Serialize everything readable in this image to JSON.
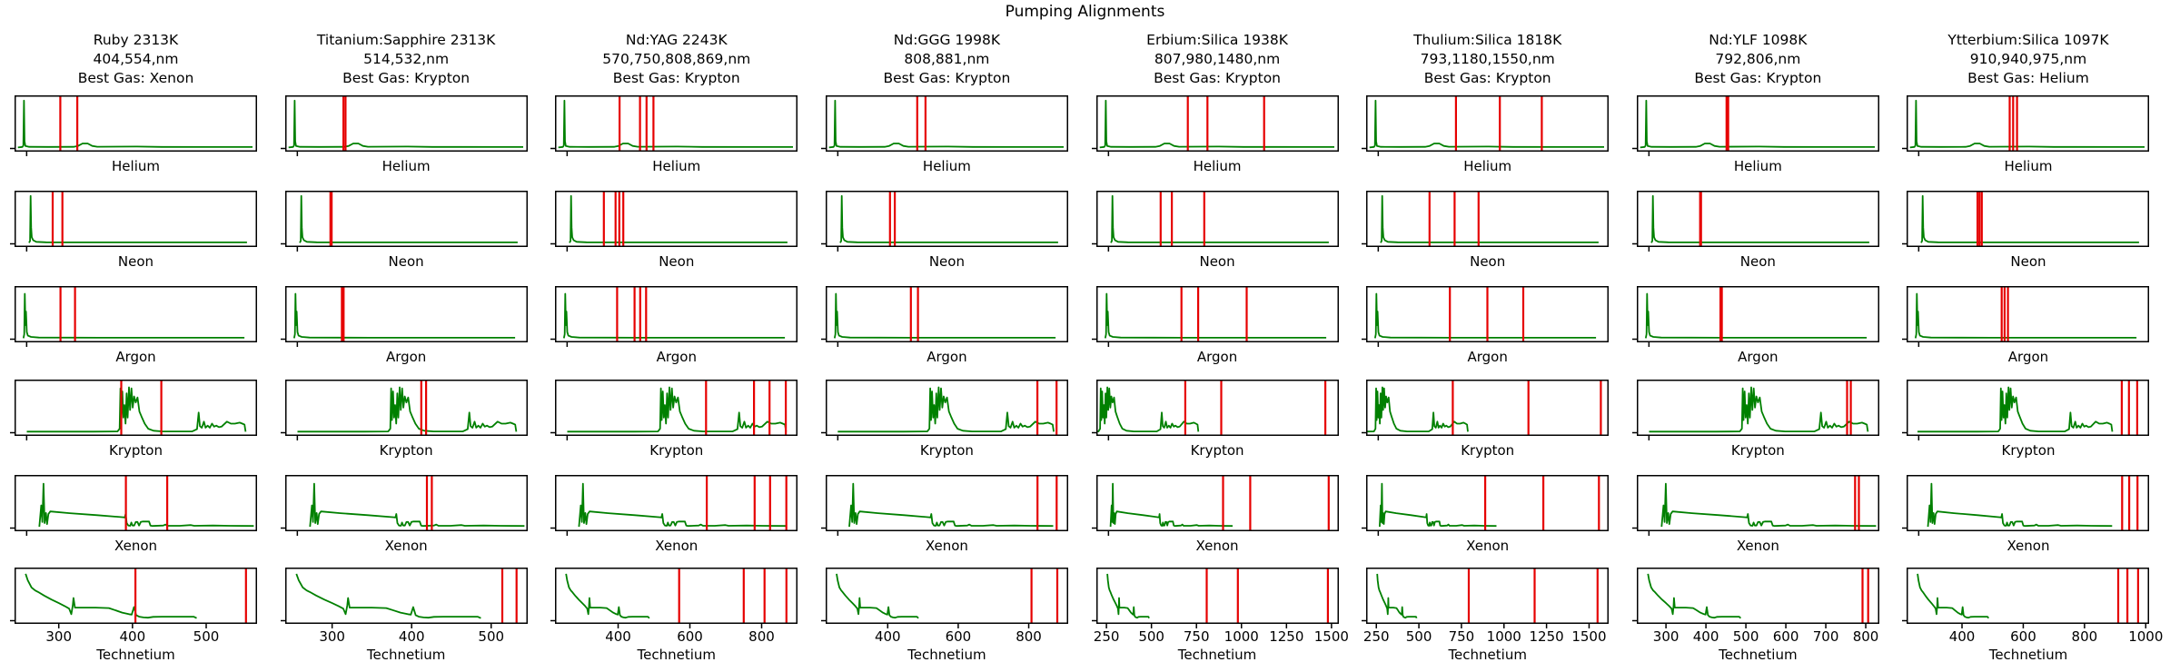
{
  "title": "Pumping Alignments",
  "colors": {
    "trace_green": "#008000",
    "pump_line_red": "#e60000",
    "frame_black": "#000000",
    "background": "#ffffff"
  },
  "chart_data": {
    "type": "line",
    "title": "Pumping Alignments",
    "layout": "small multiples, 6 gas rows x 8 crystal columns, frames on, no grid",
    "x_unit": "nm",
    "legend": "none",
    "columns": [
      {
        "crystal": "Ruby",
        "header_lines": [
          "Ruby 2313K",
          "404,554,nm",
          "Best Gas: Xenon"
        ],
        "temperature": "2313K",
        "pump_wavelengths_nm": [
          404,
          554
        ],
        "best_gas": "Xenon",
        "bottom_ticks": [
          300,
          400,
          500
        ]
      },
      {
        "crystal": "Titanium:Sapphire",
        "header_lines": [
          "Titanium:Sapphire 2313K",
          "514,532,nm",
          "Best Gas: Krypton"
        ],
        "temperature": "2313K",
        "pump_wavelengths_nm": [
          514,
          532
        ],
        "best_gas": "Krypton",
        "bottom_ticks": [
          300,
          400,
          500
        ]
      },
      {
        "crystal": "Nd:YAG",
        "header_lines": [
          "Nd:YAG 2243K",
          "570,750,808,869,nm",
          "Best Gas: Krypton"
        ],
        "temperature": "2243K",
        "pump_wavelengths_nm": [
          570,
          750,
          808,
          869
        ],
        "best_gas": "Krypton",
        "bottom_ticks": [
          400,
          600,
          800
        ]
      },
      {
        "crystal": "Nd:GGG",
        "header_lines": [
          "Nd:GGG 1998K",
          "808,881,nm",
          "Best Gas: Krypton"
        ],
        "temperature": "1998K",
        "pump_wavelengths_nm": [
          808,
          881
        ],
        "best_gas": "Krypton",
        "bottom_ticks": [
          400,
          600,
          800
        ]
      },
      {
        "crystal": "Erbium:Silica",
        "header_lines": [
          "Erbium:Silica 1938K",
          "807,980,1480,nm",
          "Best Gas: Krypton"
        ],
        "temperature": "1938K",
        "pump_wavelengths_nm": [
          807,
          980,
          1480
        ],
        "best_gas": "Krypton",
        "bottom_ticks": [
          250,
          500,
          750,
          1000,
          1250,
          1500
        ]
      },
      {
        "crystal": "Thulium:Silica",
        "header_lines": [
          "Thulium:Silica 1818K",
          "793,1180,1550,nm",
          "Best Gas: Krypton"
        ],
        "temperature": "1818K",
        "pump_wavelengths_nm": [
          793,
          1180,
          1550
        ],
        "best_gas": "Krypton",
        "bottom_ticks": [
          250,
          500,
          750,
          1000,
          1250,
          1500
        ]
      },
      {
        "crystal": "Nd:YLF",
        "header_lines": [
          "Nd:YLF 1098K",
          "792,806,nm",
          "Best Gas: Krypton"
        ],
        "temperature": "1098K",
        "pump_wavelengths_nm": [
          792,
          806
        ],
        "best_gas": "Krypton",
        "bottom_ticks": [
          300,
          400,
          500,
          600,
          700,
          800
        ]
      },
      {
        "crystal": "Ytterbium:Silica",
        "header_lines": [
          "Ytterbium:Silica 1097K",
          "910,940,975,nm",
          "Best Gas: Helium"
        ],
        "temperature": "1097K",
        "pump_wavelengths_nm": [
          910,
          940,
          975
        ],
        "best_gas": "Helium",
        "bottom_ticks": [
          400,
          600,
          800,
          1000
        ]
      }
    ],
    "rows": [
      {
        "gas": "Helium",
        "ticks_labeled": false,
        "xlim_by_column": [
          [
            0,
            2140
          ],
          [
            0,
            2140
          ],
          [
            0,
            2140
          ],
          [
            0,
            2140
          ],
          [
            0,
            2140
          ],
          [
            0,
            2140
          ],
          [
            0,
            2140
          ],
          [
            0,
            2140
          ]
        ]
      },
      {
        "gas": "Neon",
        "ticks_labeled": false,
        "xlim_by_column": [
          [
            -184,
            3555
          ],
          [
            -184,
            3555
          ],
          [
            -184,
            3555
          ],
          [
            -184,
            3555
          ],
          [
            -184,
            3555
          ],
          [
            -184,
            3555
          ],
          [
            -184,
            3555
          ],
          [
            -184,
            3555
          ]
        ]
      },
      {
        "gas": "Argon",
        "ticks_labeled": false,
        "xlim_by_column": [
          [
            -70,
            2430
          ],
          [
            -70,
            2430
          ],
          [
            -70,
            2430
          ],
          [
            -70,
            2430
          ],
          [
            -70,
            2430
          ],
          [
            -70,
            2430
          ],
          [
            -70,
            2430
          ],
          [
            -70,
            2430
          ]
        ]
      },
      {
        "gas": "Krypton",
        "ticks_labeled": false,
        "xlim_by_column": [
          [
            4,
            913
          ],
          [
            4,
            913
          ],
          [
            4,
            913
          ],
          [
            4,
            925
          ],
          [
            380,
            1545
          ],
          [
            350,
            1590
          ],
          [
            4,
            913
          ],
          [
            4,
            1025
          ]
        ]
      },
      {
        "gas": "Xenon",
        "ticks_labeled": false,
        "xlim_by_column": [
          [
            0,
            880
          ],
          [
            0,
            880
          ],
          [
            0,
            911
          ],
          [
            0,
            925
          ],
          [
            0,
            1545
          ],
          [
            0,
            1615
          ],
          [
            0,
            880
          ],
          [
            0,
            1024
          ]
        ]
      },
      {
        "gas": "Technetium",
        "ticks_labeled": true,
        "xlim_by_column": [
          [
            240,
            569
          ],
          [
            241,
            546
          ],
          [
            224,
            900
          ],
          [
            224,
            912
          ],
          [
            194,
            1541
          ],
          [
            190,
            1615
          ],
          [
            227,
            834
          ],
          [
            219,
            1011
          ]
        ]
      }
    ],
    "spectra_nm": {
      "Helium": [
        [
          30,
          0.02
        ],
        [
          70,
          0.03
        ],
        [
          78,
          0.06
        ],
        [
          83,
          0.95
        ],
        [
          88,
          0.14
        ],
        [
          95,
          0.05
        ],
        [
          130,
          0.032
        ],
        [
          300,
          0.03
        ],
        [
          520,
          0.032
        ],
        [
          560,
          0.05
        ],
        [
          600,
          0.1
        ],
        [
          645,
          0.1
        ],
        [
          685,
          0.05
        ],
        [
          730,
          0.034
        ],
        [
          1080,
          0.038
        ],
        [
          1300,
          0.03
        ],
        [
          2100,
          0.028
        ]
      ],
      "Neon": [
        [
          40,
          0.02
        ],
        [
          56,
          0.06
        ],
        [
          64,
          0.95
        ],
        [
          72,
          0.32
        ],
        [
          82,
          0.13
        ],
        [
          105,
          0.07
        ],
        [
          150,
          0.04
        ],
        [
          300,
          0.03
        ],
        [
          1200,
          0.028
        ],
        [
          3400,
          0.028
        ]
      ],
      "Argon": [
        [
          22,
          0.02
        ],
        [
          30,
          0.1
        ],
        [
          36,
          0.9
        ],
        [
          42,
          0.28
        ],
        [
          48,
          0.55
        ],
        [
          56,
          0.14
        ],
        [
          68,
          0.07
        ],
        [
          100,
          0.045
        ],
        [
          180,
          0.032
        ],
        [
          800,
          0.028
        ],
        [
          2300,
          0.028
        ]
      ],
      "Krypton": [
        [
          50,
          0.022
        ],
        [
          300,
          0.022
        ],
        [
          390,
          0.025
        ],
        [
          398,
          0.08
        ],
        [
          401,
          0.88
        ],
        [
          404,
          0.25
        ],
        [
          408,
          0.82
        ],
        [
          412,
          0.3
        ],
        [
          416,
          0.55
        ],
        [
          420,
          0.18
        ],
        [
          424,
          0.78
        ],
        [
          428,
          0.3
        ],
        [
          433,
          0.9
        ],
        [
          437,
          0.45
        ],
        [
          442,
          0.88
        ],
        [
          447,
          0.5
        ],
        [
          452,
          0.72
        ],
        [
          458,
          0.6
        ],
        [
          465,
          0.7
        ],
        [
          472,
          0.42
        ],
        [
          480,
          0.32
        ],
        [
          492,
          0.18
        ],
        [
          505,
          0.08
        ],
        [
          525,
          0.04
        ],
        [
          560,
          0.026
        ],
        [
          670,
          0.026
        ],
        [
          688,
          0.07
        ],
        [
          694,
          0.4
        ],
        [
          699,
          0.13
        ],
        [
          706,
          0.1
        ],
        [
          714,
          0.22
        ],
        [
          720,
          0.1
        ],
        [
          728,
          0.14
        ],
        [
          736,
          0.1
        ],
        [
          744,
          0.18
        ],
        [
          752,
          0.12
        ],
        [
          760,
          0.14
        ],
        [
          770,
          0.11
        ],
        [
          780,
          0.12
        ],
        [
          800,
          0.22
        ],
        [
          815,
          0.18
        ],
        [
          830,
          0.18
        ],
        [
          848,
          0.2
        ],
        [
          858,
          0.18
        ],
        [
          866,
          0.16
        ],
        [
          870,
          0.02
        ]
      ],
      "Xenon": [
        [
          90,
          0.025
        ],
        [
          97,
          0.45
        ],
        [
          101,
          0.12
        ],
        [
          105,
          0.88
        ],
        [
          109,
          0.1
        ],
        [
          114,
          0.3
        ],
        [
          118,
          0.08
        ],
        [
          123,
          0.28
        ],
        [
          130,
          0.33
        ],
        [
          200,
          0.295
        ],
        [
          300,
          0.255
        ],
        [
          395,
          0.215
        ],
        [
          400,
          0.21
        ],
        [
          403,
          0.28
        ],
        [
          407,
          0.1
        ],
        [
          413,
          0.05
        ],
        [
          420,
          0.045
        ],
        [
          424,
          0.11
        ],
        [
          428,
          0.05
        ],
        [
          434,
          0.05
        ],
        [
          440,
          0.12
        ],
        [
          446,
          0.12
        ],
        [
          452,
          0.05
        ],
        [
          458,
          0.12
        ],
        [
          466,
          0.13
        ],
        [
          488,
          0.13
        ],
        [
          493,
          0.05
        ],
        [
          500,
          0.042
        ],
        [
          540,
          0.05
        ],
        [
          548,
          0.07
        ],
        [
          556,
          0.045
        ],
        [
          600,
          0.045
        ],
        [
          640,
          0.06
        ],
        [
          652,
          0.045
        ],
        [
          720,
          0.05
        ],
        [
          780,
          0.045
        ],
        [
          868,
          0.042
        ]
      ],
      "Technetium": [
        [
          255,
          0.93
        ],
        [
          258,
          0.8
        ],
        [
          263,
          0.66
        ],
        [
          268,
          0.6
        ],
        [
          272,
          0.57
        ],
        [
          280,
          0.5
        ],
        [
          290,
          0.42
        ],
        [
          300,
          0.35
        ],
        [
          308,
          0.29
        ],
        [
          314,
          0.24
        ],
        [
          317,
          0.13
        ],
        [
          319,
          0.3
        ],
        [
          320,
          0.45
        ],
        [
          322,
          0.26
        ],
        [
          330,
          0.26
        ],
        [
          350,
          0.26
        ],
        [
          368,
          0.25
        ],
        [
          376,
          0.21
        ],
        [
          386,
          0.16
        ],
        [
          395,
          0.13
        ],
        [
          399,
          0.12
        ],
        [
          402,
          0.27
        ],
        [
          405,
          0.11
        ],
        [
          409,
          0.08
        ],
        [
          415,
          0.065
        ],
        [
          421,
          0.06
        ],
        [
          428,
          0.075
        ],
        [
          440,
          0.08
        ],
        [
          460,
          0.08
        ],
        [
          483,
          0.08
        ],
        [
          487,
          0.05
        ]
      ]
    }
  }
}
